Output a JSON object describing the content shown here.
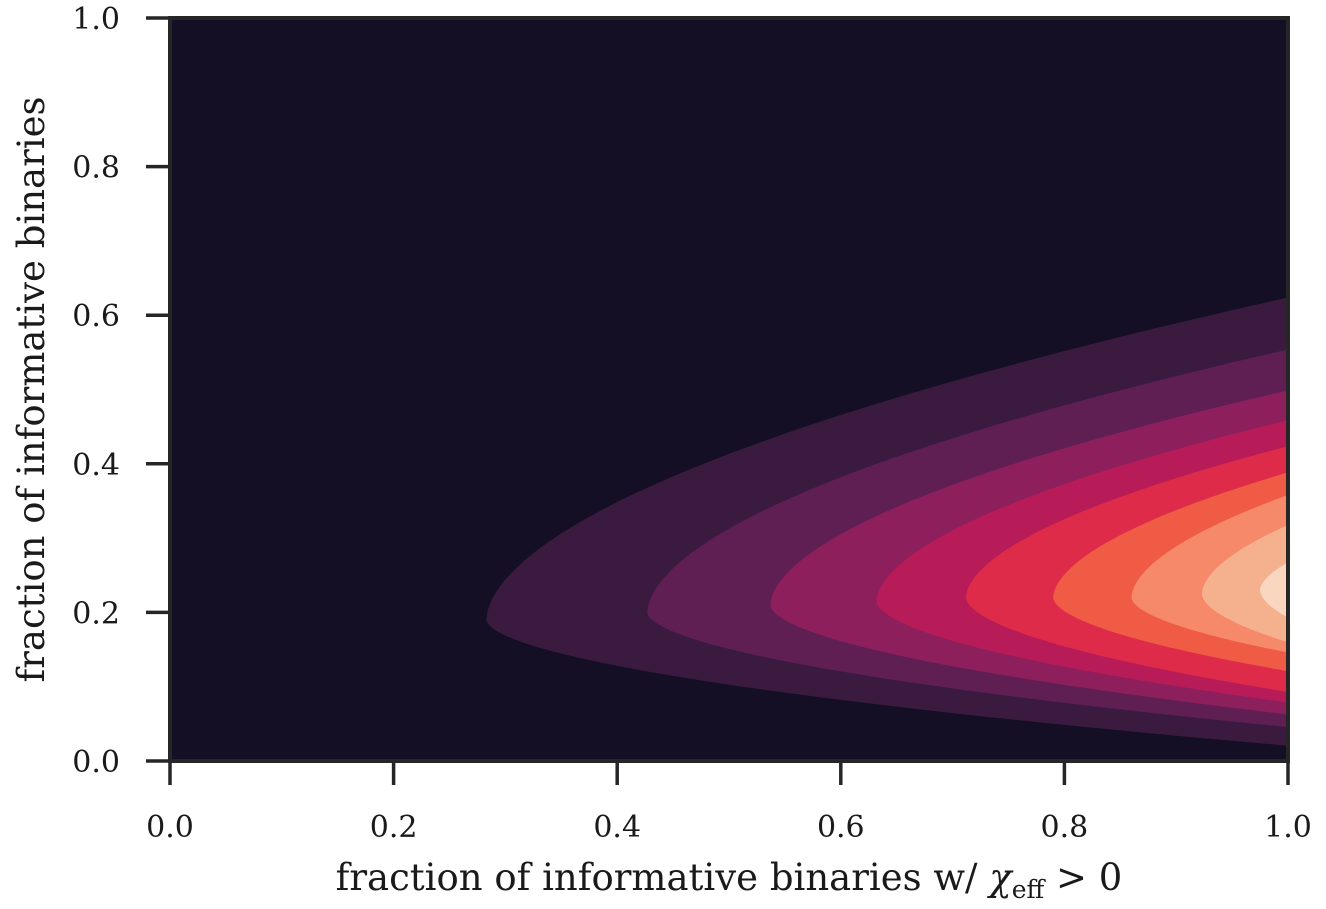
{
  "chart_data": {
    "type": "contourf",
    "xlabel": "fraction of informative binaries w/ χ_eff > 0",
    "xlabel_parts": {
      "main": "fraction of informative binaries w/ ",
      "symbol": "χ",
      "subscript": "eff",
      "relation": " > 0"
    },
    "ylabel": "fraction of informative binaries",
    "xlim": [
      0.0,
      1.0
    ],
    "ylim": [
      0.0,
      1.0
    ],
    "xticks": [
      "0.0",
      "0.2",
      "0.4",
      "0.6",
      "0.8",
      "1.0"
    ],
    "yticks": [
      "0.0",
      "0.2",
      "0.4",
      "0.6",
      "0.8",
      "1.0"
    ],
    "colormap": "rocket",
    "background_color": "#140f24",
    "levels": [
      {
        "color": "#3a1b3f",
        "left_x": 0.283,
        "y_center": 0.19,
        "right_y_top": 0.625,
        "right_y_bottom": 0.02
      },
      {
        "color": "#601f52",
        "left_x": 0.427,
        "y_center": 0.2,
        "right_y_top": 0.555,
        "right_y_bottom": 0.045
      },
      {
        "color": "#8d1f5c",
        "left_x": 0.537,
        "y_center": 0.21,
        "right_y_top": 0.5,
        "right_y_bottom": 0.062
      },
      {
        "color": "#b71c58",
        "left_x": 0.632,
        "y_center": 0.215,
        "right_y_top": 0.46,
        "right_y_bottom": 0.078
      },
      {
        "color": "#de2b4a",
        "left_x": 0.712,
        "y_center": 0.22,
        "right_y_top": 0.425,
        "right_y_bottom": 0.092
      },
      {
        "color": "#ef5b44",
        "left_x": 0.79,
        "y_center": 0.22,
        "right_y_top": 0.39,
        "right_y_bottom": 0.12
      },
      {
        "color": "#f6896a",
        "left_x": 0.86,
        "y_center": 0.22,
        "right_y_top": 0.36,
        "right_y_bottom": 0.145
      },
      {
        "color": "#f5b08e",
        "left_x": 0.923,
        "y_center": 0.225,
        "right_y_top": 0.32,
        "right_y_bottom": 0.158
      },
      {
        "color": "#f8d6c0",
        "left_x": 0.975,
        "y_center": 0.23,
        "right_y_top": 0.27,
        "right_y_bottom": 0.19
      }
    ]
  }
}
